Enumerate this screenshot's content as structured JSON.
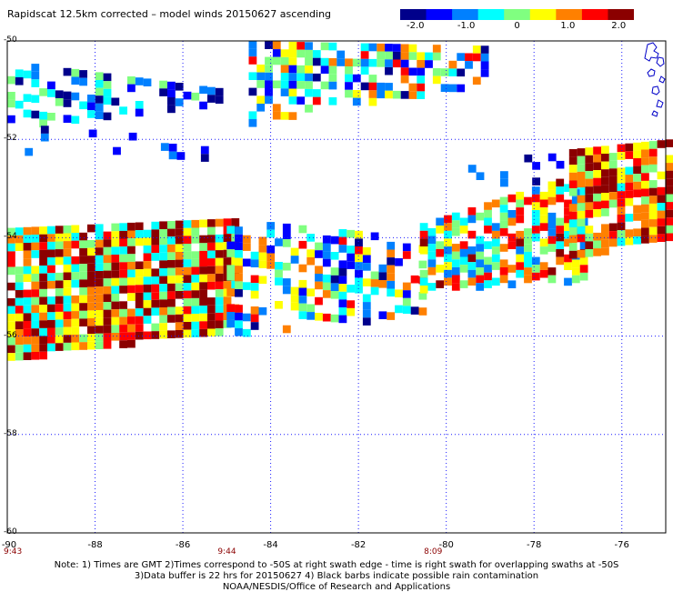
{
  "title": "Rapidscat 12.5km corrected – model winds 20150627 ascending",
  "colorbar": {
    "stops": [
      "#00008b",
      "#0000ff",
      "#0080ff",
      "#00ffff",
      "#80ff80",
      "#ffff00",
      "#ff8000",
      "#ff0000",
      "#8b0000"
    ],
    "ticks": [
      {
        "value": -2.0,
        "label": "-2.0"
      },
      {
        "value": -1.0,
        "label": "-1.0"
      },
      {
        "value": 0,
        "label": "0"
      },
      {
        "value": 1.0,
        "label": "1.0"
      },
      {
        "value": 2.0,
        "label": "2.0"
      }
    ],
    "range": [
      -2.3,
      2.3
    ]
  },
  "chart_data": {
    "type": "heatmap",
    "xlim": [
      -90,
      -75
    ],
    "ylim": [
      -60,
      -50
    ],
    "x_ticks": [
      {
        "value": -88,
        "label": "-88"
      },
      {
        "value": -86,
        "label": "-86"
      },
      {
        "value": -84,
        "label": "-84"
      },
      {
        "value": -82,
        "label": "-82"
      },
      {
        "value": -80,
        "label": "-80"
      },
      {
        "value": -78,
        "label": "-78"
      },
      {
        "value": -76,
        "label": "-76"
      }
    ],
    "y_ticks": [
      {
        "value": -50,
        "label": "-50"
      },
      {
        "value": -52,
        "label": "-52"
      },
      {
        "value": -54,
        "label": "-54"
      },
      {
        "value": -56,
        "label": "-56"
      },
      {
        "value": -58,
        "label": "-58"
      },
      {
        "value": -60,
        "label": "-60"
      }
    ],
    "corner_label": "-90",
    "grid": true,
    "pass_times": [
      {
        "lon": -90,
        "label": "9:43"
      },
      {
        "lon": -85,
        "label": "9:44"
      },
      {
        "lon": -80.3,
        "label": "8:09"
      }
    ],
    "swaths": [
      {
        "lon": [
          -84.5,
          -79.1
        ],
        "lat_top": [
          -50.0,
          -50.1
        ],
        "lat_bottom": [
          -51.6,
          -50.8
        ],
        "mean": -0.3,
        "spread": 1.8,
        "density": 0.62
      },
      {
        "lon": [
          -90,
          -84.9
        ],
        "lat_top": [
          -50.4,
          -51.0
        ],
        "lat_bottom": [
          -51.7,
          -51.2
        ],
        "mean": -1.1,
        "spread": 1.3,
        "density": 0.55
      },
      {
        "lon": [
          -90,
          -84.8
        ],
        "lat_top": [
          -53.8,
          -53.6
        ],
        "lat_bottom": [
          -56.4,
          -55.8
        ],
        "mean": 0.9,
        "spread": 1.6,
        "density": 0.92
      },
      {
        "lon": [
          -85.0,
          -80.5
        ],
        "lat_top": [
          -53.6,
          -54.0
        ],
        "lat_bottom": [
          -55.9,
          -55.5
        ],
        "mean": -0.2,
        "spread": 1.8,
        "density": 0.5
      },
      {
        "lon": [
          -80.6,
          -76.8
        ],
        "lat_top": [
          -53.7,
          -52.6
        ],
        "lat_bottom": [
          -55.0,
          -54.8
        ],
        "mean": 0.4,
        "spread": 1.7,
        "density": 0.72
      },
      {
        "lon": [
          -77.2,
          -75.0
        ],
        "lat_top": [
          -52.2,
          -52.0
        ],
        "lat_bottom": [
          -54.3,
          -54.0
        ],
        "mean": 1.0,
        "spread": 1.5,
        "density": 0.85
      },
      {
        "lon": [
          -89.6,
          -85.3
        ],
        "lat_top": [
          -51.7,
          -52.0
        ],
        "lat_bottom": [
          -52.3,
          -52.4
        ],
        "mean": -1.6,
        "spread": 0.6,
        "density": 0.12
      },
      {
        "lon": [
          -79.5,
          -77.0
        ],
        "lat_top": [
          -52.2,
          -52.1
        ],
        "lat_bottom": [
          -53.1,
          -52.6
        ],
        "mean": -1.5,
        "spread": 0.7,
        "density": 0.2
      }
    ]
  },
  "notes": [
    "Note: 1) Times are GMT 2)Times correspond to -50S at right swath edge - time is right swath for overlapping swaths at -50S",
    "3)Data buffer is 22 hrs for 20150627 4) Black barbs indicate possible rain contamination",
    "NOAA/NESDIS/Office of Research and Applications"
  ]
}
